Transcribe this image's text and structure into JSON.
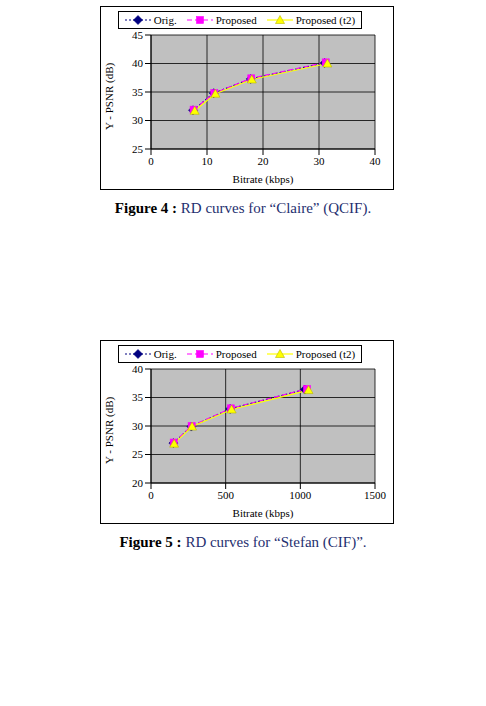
{
  "chart_data": [
    {
      "type": "line",
      "caption_label": "Figure 4 :",
      "caption_text": "RD curves for “Claire” (QCIF).",
      "x_label": "Bitrate (kbps)",
      "y_label": "Y - PSNR (dB)",
      "xlim": [
        0,
        40
      ],
      "xticks": [
        0,
        10,
        20,
        30,
        40
      ],
      "ylim": [
        25,
        45
      ],
      "yticks": [
        25,
        30,
        35,
        40,
        45
      ],
      "grid": true,
      "legend": "top",
      "series": [
        {
          "name": "Orig.",
          "color": "#000080",
          "marker": "diamond",
          "line_style": "dotted",
          "x": [
            7.5,
            11.2,
            17.8,
            31.0
          ],
          "values": [
            31.8,
            34.8,
            37.3,
            40.1
          ]
        },
        {
          "name": "Proposed",
          "color": "#ff00ff",
          "marker": "square",
          "line_style": "dashed",
          "x": [
            7.6,
            11.3,
            17.9,
            31.2
          ],
          "values": [
            31.9,
            34.8,
            37.4,
            40.2
          ]
        },
        {
          "name": "Proposed (t2)",
          "color": "#ffff00",
          "marker": "triangle",
          "line_style": "solid",
          "x": [
            7.8,
            11.5,
            18.0,
            31.5
          ],
          "values": [
            31.7,
            34.7,
            37.2,
            40.0
          ]
        }
      ]
    },
    {
      "type": "line",
      "caption_label": "Figure 5 :",
      "caption_text": "RD curves for “Stefan (CIF)”.",
      "x_label": "Bitrate (kbps)",
      "y_label": "Y - PSNR (dB)",
      "xlim": [
        0,
        1500
      ],
      "xticks": [
        0,
        500,
        1000,
        1500
      ],
      "ylim": [
        20,
        40
      ],
      "yticks": [
        20,
        25,
        30,
        35,
        40
      ],
      "grid": true,
      "legend": "top",
      "series": [
        {
          "name": "Orig.",
          "color": "#000080",
          "marker": "diamond",
          "line_style": "dotted",
          "x": [
            150,
            270,
            530,
            1030
          ],
          "values": [
            27.0,
            29.9,
            33.0,
            36.4
          ]
        },
        {
          "name": "Proposed",
          "color": "#ff00ff",
          "marker": "square",
          "line_style": "dashed",
          "x": [
            152,
            272,
            535,
            1045
          ],
          "values": [
            27.1,
            30.0,
            33.1,
            36.5
          ]
        },
        {
          "name": "Proposed (t2)",
          "color": "#ffff00",
          "marker": "triangle",
          "line_style": "solid",
          "x": [
            155,
            275,
            540,
            1055
          ],
          "values": [
            26.9,
            29.9,
            32.9,
            36.3
          ]
        }
      ]
    }
  ]
}
